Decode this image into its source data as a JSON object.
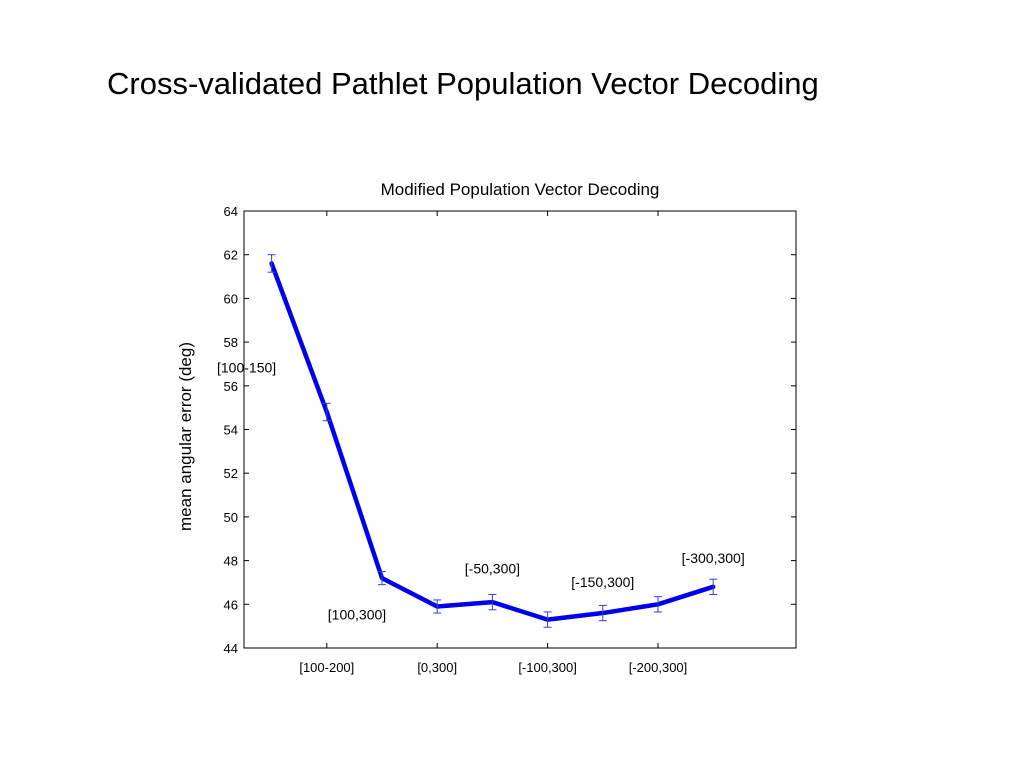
{
  "slide": {
    "title": "Cross-validated Pathlet Population Vector Decoding"
  },
  "chart_data": {
    "type": "line",
    "title": "Modified Population Vector Decoding",
    "xlabel": "",
    "ylabel": "mean angular error (deg)",
    "ylim": [
      44,
      64
    ],
    "xlim": [
      0.5,
      10.5
    ],
    "yticks": [
      44,
      46,
      48,
      50,
      52,
      54,
      56,
      58,
      60,
      62,
      64
    ],
    "x_tick_positions": [
      2,
      4,
      6,
      8
    ],
    "x_tick_labels": [
      "[100-200]",
      "[0,300]",
      "[-100,300]",
      "[-200,300]"
    ],
    "grid": false,
    "series_color": "#0000ee",
    "errorbar_color": "#3344cc",
    "series": [
      {
        "x": [
          1,
          2,
          3,
          4,
          5,
          6,
          7,
          8,
          9,
          10
        ],
        "values": [
          61.6,
          54.8,
          47.2,
          45.9,
          46.1,
          45.3,
          45.6,
          46.0,
          46.8,
          null
        ],
        "errors": [
          0.4,
          0.4,
          0.3,
          0.3,
          0.35,
          0.35,
          0.35,
          0.35,
          0.35,
          null
        ]
      }
    ],
    "annotations": [
      {
        "text": "[100-150]",
        "x": 1,
        "y": 56.6,
        "anchor": "end"
      },
      {
        "text": "[100,300]",
        "x": 3,
        "y": 45.3,
        "anchor": "end"
      },
      {
        "text": "[-50,300]",
        "x": 5,
        "y": 47.4,
        "anchor": "middle"
      },
      {
        "text": "[-150,300]",
        "x": 7,
        "y": 46.8,
        "anchor": "middle"
      },
      {
        "text": "[-300,300]",
        "x": 9,
        "y": 47.9,
        "anchor": "middle"
      }
    ]
  }
}
